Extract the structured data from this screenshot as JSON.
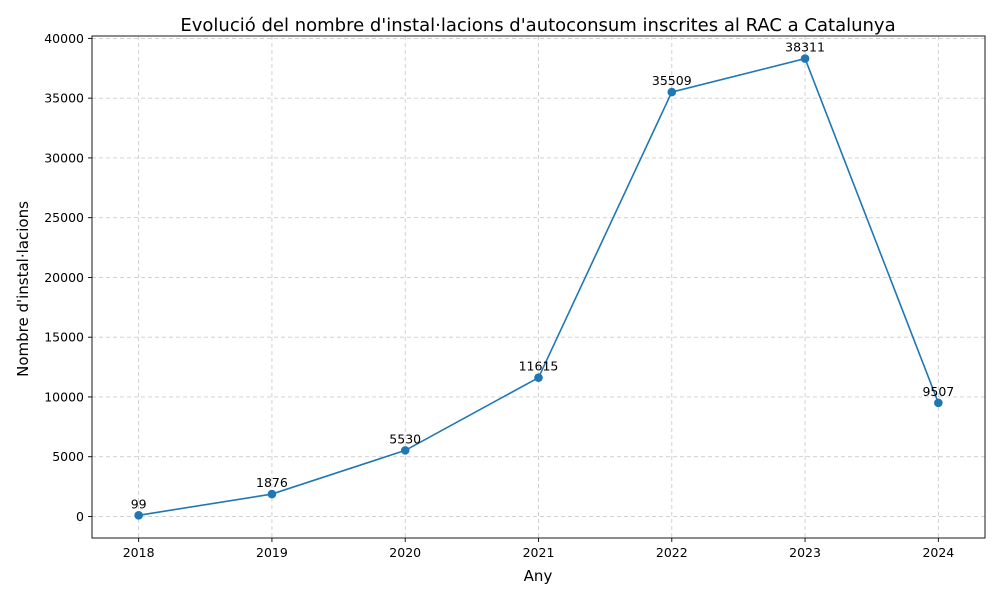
{
  "chart_data": {
    "type": "line",
    "title": "Evolució del nombre d'instal·lacions d'autoconsum inscrites al RAC a Catalunya",
    "xlabel": "Any",
    "ylabel": "Nombre d'instal·lacions",
    "categories": [
      "2018",
      "2019",
      "2020",
      "2021",
      "2022",
      "2023",
      "2024"
    ],
    "series": [
      {
        "values": [
          99,
          1876,
          5530,
          11615,
          35509,
          38311,
          9507
        ]
      }
    ],
    "data_labels": [
      "99",
      "1876",
      "5530",
      "11615",
      "35509",
      "38311",
      "9507"
    ],
    "ylim": [
      -1800,
      40200
    ],
    "yticks": [
      0,
      5000,
      10000,
      15000,
      20000,
      25000,
      30000,
      35000,
      40000
    ],
    "grid": true,
    "line_color": "#1f77b4",
    "marker": "circle"
  }
}
